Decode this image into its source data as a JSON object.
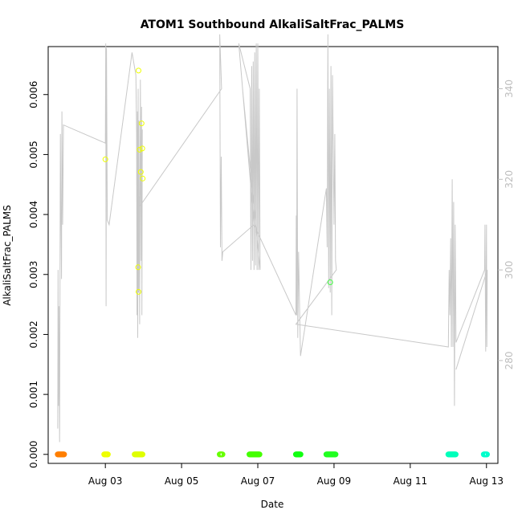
{
  "chart_data": {
    "type": "scatter",
    "title": "ATOM1 Southbound AlkaliSaltFrac_PALMS",
    "xlabel": "Date",
    "ylabel": "AlkaliSaltFrac_PALMS",
    "x_unit": "days since Aug 1 (00:00)",
    "xlim": [
      1.5,
      13.3
    ],
    "ylim": [
      -0.00015,
      0.0068
    ],
    "y2lim": [
      257.3,
      349.3
    ],
    "x_ticks": [
      {
        "value": 3,
        "label": "Aug 03"
      },
      {
        "value": 5,
        "label": "Aug 05"
      },
      {
        "value": 7,
        "label": "Aug 07"
      },
      {
        "value": 9,
        "label": "Aug 09"
      },
      {
        "value": 11,
        "label": "Aug 11"
      },
      {
        "value": 13,
        "label": "Aug 13"
      }
    ],
    "y_ticks": [
      {
        "value": 0,
        "label": "0.000"
      },
      {
        "value": 0.001,
        "label": "0.001"
      },
      {
        "value": 0.002,
        "label": "0.002"
      },
      {
        "value": 0.003,
        "label": "0.003"
      },
      {
        "value": 0.004,
        "label": "0.004"
      },
      {
        "value": 0.005,
        "label": "0.005"
      },
      {
        "value": 0.006,
        "label": "0.006"
      }
    ],
    "y2_ticks": [
      {
        "value": 280,
        "label": "280"
      },
      {
        "value": 300,
        "label": "300"
      },
      {
        "value": 320,
        "label": "320"
      },
      {
        "value": 340,
        "label": "340"
      }
    ],
    "grid": false,
    "legend": "none",
    "zero_segments": [
      {
        "x0": 1.75,
        "x1": 1.92,
        "color": "#ff7f00"
      },
      {
        "x0": 2.97,
        "x1": 3.07,
        "color": "#eeff00"
      },
      {
        "x0": 3.77,
        "x1": 3.98,
        "color": "#dfff00"
      },
      {
        "x0": 6.0,
        "x1": 6.08,
        "color": "#66ff00"
      },
      {
        "x0": 6.78,
        "x1": 7.05,
        "color": "#44ff00"
      },
      {
        "x0": 8.0,
        "x1": 8.12,
        "color": "#11ff11"
      },
      {
        "x0": 8.8,
        "x1": 9.05,
        "color": "#22ff22"
      },
      {
        "x0": 12.0,
        "x1": 12.2,
        "color": "#00ffbb"
      },
      {
        "x0": 12.93,
        "x1": 13.02,
        "color": "#00ffcc"
      }
    ],
    "points": [
      {
        "x": 3.0,
        "y": 0.00492,
        "color": "#eeff00"
      },
      {
        "x": 3.87,
        "y": 0.0064,
        "color": "#eeff00"
      },
      {
        "x": 3.95,
        "y": 0.00552,
        "color": "#eeff00"
      },
      {
        "x": 3.9,
        "y": 0.00508,
        "color": "#eeff00"
      },
      {
        "x": 3.97,
        "y": 0.0051,
        "color": "#eeff00"
      },
      {
        "x": 3.93,
        "y": 0.00471,
        "color": "#eeff00"
      },
      {
        "x": 3.98,
        "y": 0.0046,
        "color": "#eeff00"
      },
      {
        "x": 3.86,
        "y": 0.00312,
        "color": "#eeff00"
      },
      {
        "x": 3.87,
        "y": 0.00271,
        "color": "#eeff00"
      },
      {
        "x": 8.9,
        "y": 0.00287,
        "color": "#44ff44"
      }
    ],
    "altitude_line": {
      "color": "#c8c8c8",
      "points": [
        [
          1.75,
          265
        ],
        [
          1.76,
          300
        ],
        [
          1.77,
          270
        ],
        [
          1.78,
          292
        ],
        [
          1.8,
          262
        ],
        [
          1.82,
          330
        ],
        [
          1.83,
          315
        ],
        [
          1.85,
          298
        ],
        [
          1.86,
          335
        ],
        [
          1.88,
          310
        ],
        [
          1.9,
          332
        ],
        [
          3.0,
          328
        ],
        [
          3.01,
          350
        ],
        [
          3.02,
          292
        ],
        [
          3.03,
          349
        ],
        [
          3.05,
          311
        ],
        [
          3.1,
          310
        ],
        [
          3.7,
          348
        ],
        [
          3.8,
          343
        ],
        [
          3.82,
          330
        ],
        [
          3.83,
          290
        ],
        [
          3.84,
          335
        ],
        [
          3.85,
          285
        ],
        [
          3.86,
          340
        ],
        [
          3.87,
          295
        ],
        [
          3.88,
          333
        ],
        [
          3.9,
          288
        ],
        [
          3.92,
          342
        ],
        [
          3.94,
          302
        ],
        [
          3.95,
          336
        ],
        [
          3.96,
          290
        ],
        [
          3.97,
          331
        ],
        [
          3.9,
          314
        ],
        [
          6.05,
          340
        ],
        [
          6.0,
          352
        ],
        [
          6.02,
          305
        ],
        [
          6.04,
          325
        ],
        [
          6.06,
          302
        ],
        [
          6.08,
          304
        ],
        [
          6.9,
          310
        ],
        [
          6.5,
          350
        ],
        [
          6.8,
          340
        ],
        [
          6.82,
          300
        ],
        [
          6.84,
          345
        ],
        [
          6.86,
          302
        ],
        [
          6.88,
          346
        ],
        [
          6.9,
          300
        ],
        [
          6.92,
          348
        ],
        [
          6.94,
          301
        ],
        [
          6.96,
          350
        ],
        [
          6.98,
          300
        ],
        [
          7.0,
          350
        ],
        [
          7.02,
          300
        ],
        [
          7.04,
          340
        ],
        [
          7.06,
          300
        ],
        [
          6.6,
          340
        ],
        [
          6.9,
          310
        ],
        [
          8.0,
          290
        ],
        [
          8.01,
          312
        ],
        [
          8.02,
          290
        ],
        [
          8.03,
          340
        ],
        [
          8.05,
          285
        ],
        [
          8.07,
          304
        ],
        [
          8.1,
          290
        ],
        [
          8.12,
          281
        ],
        [
          8.8,
          318
        ],
        [
          8.82,
          305
        ],
        [
          8.84,
          352
        ],
        [
          8.86,
          296
        ],
        [
          8.88,
          340
        ],
        [
          8.9,
          295
        ],
        [
          8.92,
          345
        ],
        [
          8.94,
          290
        ],
        [
          8.96,
          343
        ],
        [
          9.0,
          310
        ],
        [
          9.02,
          330
        ],
        [
          9.04,
          302
        ],
        [
          9.06,
          300
        ],
        [
          8.0,
          288
        ],
        [
          12.0,
          283
        ],
        [
          12.02,
          300
        ],
        [
          12.04,
          290
        ],
        [
          12.06,
          307
        ],
        [
          12.08,
          283
        ],
        [
          12.1,
          320
        ],
        [
          12.12,
          283
        ],
        [
          12.14,
          315
        ],
        [
          12.16,
          270
        ],
        [
          12.18,
          310
        ],
        [
          12.2,
          284
        ],
        [
          12.95,
          300
        ],
        [
          12.96,
          310
        ],
        [
          12.98,
          282
        ],
        [
          13.0,
          310
        ],
        [
          13.01,
          283
        ],
        [
          13.02,
          300
        ],
        [
          12.2,
          278
        ]
      ]
    }
  }
}
